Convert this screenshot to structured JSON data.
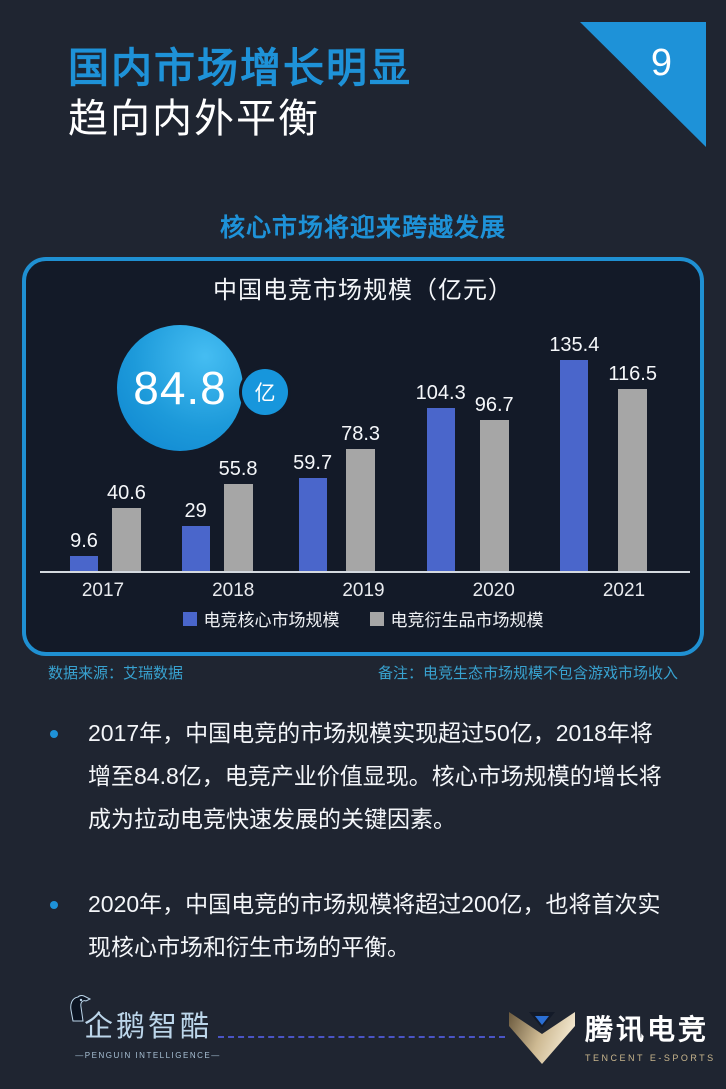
{
  "page": {
    "number": "9"
  },
  "header": {
    "title_line1": "国内市场增长明显",
    "title_line2": "趋向内外平衡"
  },
  "section": {
    "heading": "核心市场将迎来跨越发展"
  },
  "chart_data": {
    "type": "bar",
    "title": "中国电竞市场规模（亿元）",
    "categories": [
      "2017",
      "2018",
      "2019",
      "2020",
      "2021"
    ],
    "series": [
      {
        "name": "电竞核心市场规模",
        "color": "#4a66cb",
        "values": [
          9.6,
          29,
          59.7,
          104.3,
          135.4
        ]
      },
      {
        "name": "电竞衍生品市场规模",
        "color": "#a6a6a6",
        "values": [
          40.6,
          55.8,
          78.3,
          96.7,
          116.5
        ]
      }
    ],
    "value_labels": [
      [
        "9.6",
        "29",
        "59.7",
        "104.3",
        "135.4"
      ],
      [
        "40.6",
        "55.8",
        "78.3",
        "96.7",
        "116.5"
      ]
    ],
    "ylim": [
      0,
      145
    ],
    "grid": false,
    "legend_position": "bottom",
    "highlight": {
      "value": "84.8",
      "unit": "亿"
    }
  },
  "footnotes": {
    "source": "数据来源：艾瑞数据",
    "note": "备注：电竞生态市场规模不包含游戏市场收入"
  },
  "bullets": [
    "2017年，中国电竞的市场规模实现超过50亿，2018年将增至84.8亿，电竞产业价值显现。核心市场规模的增长将成为拉动电竞快速发展的关键因素。",
    "2020年，中国电竞的市场规模将超过200亿，也将首次实现核心市场和衍生市场的平衡。"
  ],
  "footer": {
    "left_logo": {
      "name": "企鹅智酷",
      "subtitle": "—PENGUIN INTELLIGENCE—"
    },
    "right_logo": {
      "name": "腾讯电竞",
      "subtitle": "TENCENT E-SPORTS"
    }
  },
  "colors": {
    "accent_blue": "#1e92d8",
    "bar_blue": "#4a66cb",
    "bar_gray": "#a6a6a6",
    "footnote_cyan": "#38a2d0",
    "page_background": "#1f2531",
    "panel_background": "#131a28"
  }
}
